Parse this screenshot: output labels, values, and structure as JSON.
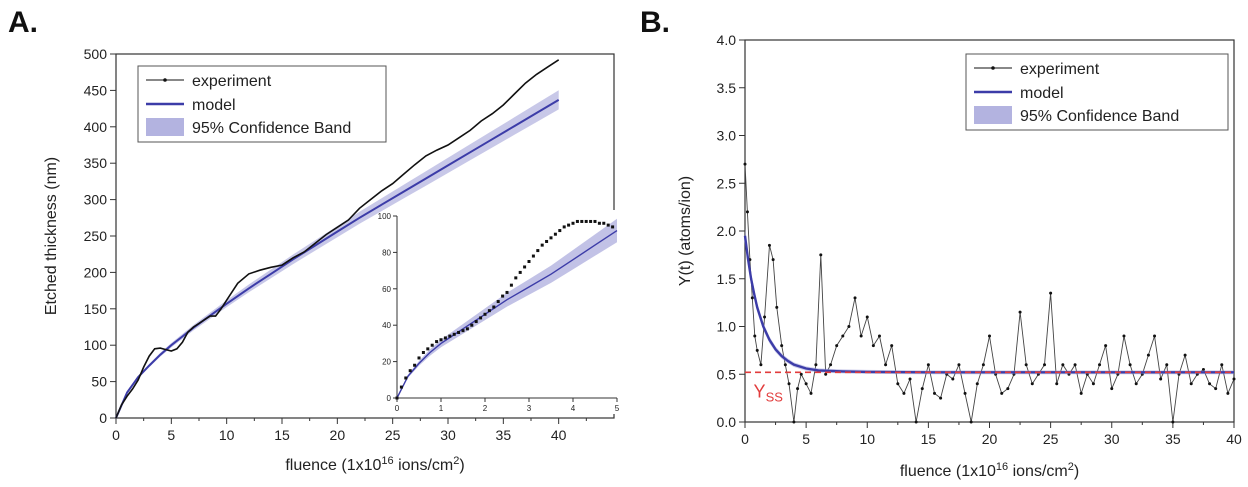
{
  "figure": {
    "panel_a_label": "A.",
    "panel_b_label": "B."
  },
  "chart_data": [
    {
      "panel": "A.",
      "type": "line",
      "xlabel": "fluence (1x10",
      "xlabel_sup": "16",
      "xlabel_mid": " ions/cm",
      "xlabel_sup2": "2",
      "xlabel_end": ")",
      "ylabel": "Etched thickness (nm)",
      "xlim": [
        0,
        45
      ],
      "ylim": [
        0,
        500
      ],
      "xticks": [
        0,
        5,
        10,
        15,
        20,
        25,
        30,
        35,
        40
      ],
      "yticks": [
        0,
        50,
        100,
        150,
        200,
        250,
        300,
        350,
        400,
        450,
        500
      ],
      "legend": {
        "position": "top-left",
        "entries": [
          "experiment",
          "model",
          "95% Confidence Band"
        ]
      },
      "colors": {
        "experiment": "#111111",
        "model": "#3c3ca8",
        "band": "#9a9ad6"
      },
      "series": [
        {
          "name": "experiment",
          "x": [
            0,
            0.5,
            1,
            1.5,
            2,
            2.5,
            3,
            3.5,
            4,
            4.5,
            5,
            5.5,
            6,
            6.5,
            7,
            7.5,
            8,
            8.5,
            9,
            9.5,
            10,
            11,
            12,
            13,
            14,
            15,
            16,
            17,
            18,
            19,
            20,
            21,
            22,
            23,
            24,
            25,
            26,
            27,
            28,
            29,
            30,
            31,
            32,
            33,
            34,
            35,
            36,
            37,
            38,
            39,
            40
          ],
          "y": [
            0,
            18,
            30,
            40,
            52,
            70,
            85,
            95,
            96,
            94,
            92,
            95,
            104,
            118,
            125,
            130,
            135,
            140,
            140,
            150,
            162,
            185,
            198,
            203,
            207,
            210,
            220,
            228,
            240,
            252,
            262,
            272,
            288,
            300,
            312,
            322,
            335,
            348,
            360,
            368,
            375,
            385,
            395,
            408,
            418,
            430,
            445,
            460,
            472,
            482,
            492
          ]
        },
        {
          "name": "model",
          "x": [
            0,
            1,
            2,
            3,
            4,
            5,
            6,
            7,
            8,
            9,
            10,
            12,
            14,
            16,
            18,
            20,
            22,
            24,
            26,
            28,
            30,
            32,
            34,
            36,
            38,
            40
          ],
          "y": [
            0,
            35,
            56,
            72,
            87,
            100,
            112,
            124,
            135,
            146,
            157,
            178,
            198,
            218,
            237,
            256,
            275,
            293,
            311,
            329,
            347,
            365,
            383,
            401,
            419,
            437
          ]
        }
      ],
      "inset": {
        "xlim": [
          0,
          5
        ],
        "ylim": [
          0,
          100
        ],
        "xticks": [
          0,
          1,
          2,
          3,
          4,
          5
        ],
        "yticks": [
          0,
          20,
          40,
          60,
          80,
          100
        ],
        "series": [
          {
            "name": "experiment",
            "x": [
              0,
              0.1,
              0.2,
              0.3,
              0.4,
              0.5,
              0.6,
              0.7,
              0.8,
              0.9,
              1.0,
              1.1,
              1.2,
              1.3,
              1.4,
              1.5,
              1.6,
              1.7,
              1.8,
              1.9,
              2.0,
              2.1,
              2.2,
              2.3,
              2.4,
              2.5,
              2.6,
              2.7,
              2.8,
              2.9,
              3.0,
              3.1,
              3.2,
              3.3,
              3.4,
              3.5,
              3.6,
              3.7,
              3.8,
              3.9,
              4.0,
              4.1,
              4.2,
              4.3,
              4.4,
              4.5,
              4.6,
              4.7,
              4.8,
              4.9
            ],
            "y": [
              0,
              6,
              11,
              15,
              18,
              22,
              25,
              27,
              29,
              31,
              32,
              33,
              34,
              35,
              36,
              37,
              38,
              40,
              42,
              44,
              46,
              48,
              50,
              53,
              56,
              58,
              62,
              66,
              69,
              72,
              75,
              78,
              81,
              84,
              86,
              88,
              90,
              92,
              94,
              95,
              96,
              97,
              97,
              97,
              97,
              97,
              96,
              96,
              95,
              94
            ]
          },
          {
            "name": "model",
            "x": [
              0,
              0.25,
              0.5,
              0.75,
              1,
              1.5,
              2,
              2.5,
              3,
              3.5,
              4,
              4.5,
              5
            ],
            "y": [
              0,
              12,
              19,
              25,
              30,
              38,
              46,
              54,
              61,
              68,
              76,
              84,
              92
            ]
          }
        ]
      }
    },
    {
      "panel": "B.",
      "type": "line",
      "xlabel": "fluence (1x10",
      "xlabel_sup": "16",
      "xlabel_mid": " ions/cm",
      "xlabel_sup2": "2",
      "xlabel_end": ")",
      "ylabel": "Y(t) (atoms/ion)",
      "xlim": [
        0,
        40
      ],
      "ylim": [
        0,
        4.0
      ],
      "xticks": [
        0,
        5,
        10,
        15,
        20,
        25,
        30,
        35,
        40
      ],
      "yticks": [
        "0.0",
        "0.5",
        "1.0",
        "1.5",
        "2.0",
        "2.5",
        "3.0",
        "3.5",
        "4.0"
      ],
      "legend": {
        "position": "top-right",
        "entries": [
          "experiment",
          "model",
          "95% Confidence Band"
        ]
      },
      "annotation": {
        "text": "Y",
        "sub": "ss",
        "color": "#e23c3c"
      },
      "steady_state": 0.52,
      "colors": {
        "experiment": "#111111",
        "model": "#3c3ca8",
        "band": "#9a9ad6",
        "ss_line": "#e23c3c"
      },
      "series": [
        {
          "name": "experiment",
          "x": [
            0,
            0.2,
            0.4,
            0.6,
            0.8,
            1,
            1.3,
            1.6,
            2,
            2.3,
            2.6,
            3,
            3.3,
            3.6,
            4,
            4.3,
            4.6,
            5,
            5.4,
            5.8,
            6.2,
            6.6,
            7,
            7.5,
            8,
            8.5,
            9,
            9.5,
            10,
            10.5,
            11,
            11.5,
            12,
            12.5,
            13,
            13.5,
            14,
            14.5,
            15,
            15.5,
            16,
            16.5,
            17,
            17.5,
            18,
            18.5,
            19,
            19.5,
            20,
            20.5,
            21,
            21.5,
            22,
            22.5,
            23,
            23.5,
            24,
            24.5,
            25,
            25.5,
            26,
            26.5,
            27,
            27.5,
            28,
            28.5,
            29,
            29.5,
            30,
            30.5,
            31,
            31.5,
            32,
            32.5,
            33,
            33.5,
            34,
            34.5,
            35,
            35.5,
            36,
            36.5,
            37,
            37.5,
            38,
            38.5,
            39,
            39.5,
            40
          ],
          "y": [
            2.7,
            2.2,
            1.7,
            1.3,
            0.9,
            0.75,
            0.6,
            1.1,
            1.85,
            1.7,
            1.2,
            0.8,
            0.6,
            0.4,
            0.0,
            0.35,
            0.5,
            0.4,
            0.3,
            0.6,
            1.75,
            0.5,
            0.6,
            0.8,
            0.9,
            1.0,
            1.3,
            0.9,
            1.1,
            0.8,
            0.9,
            0.6,
            0.8,
            0.4,
            0.3,
            0.45,
            0.0,
            0.35,
            0.6,
            0.3,
            0.25,
            0.5,
            0.45,
            0.6,
            0.3,
            0.0,
            0.4,
            0.6,
            0.9,
            0.5,
            0.3,
            0.35,
            0.5,
            1.15,
            0.6,
            0.4,
            0.5,
            0.6,
            1.35,
            0.4,
            0.6,
            0.5,
            0.6,
            0.3,
            0.5,
            0.4,
            0.6,
            0.8,
            0.35,
            0.5,
            0.9,
            0.6,
            0.4,
            0.5,
            0.7,
            0.9,
            0.45,
            0.6,
            0.0,
            0.5,
            0.7,
            0.4,
            0.5,
            0.55,
            0.4,
            0.35,
            0.6,
            0.3,
            0.45
          ]
        },
        {
          "name": "model",
          "x": [
            0,
            0.25,
            0.5,
            0.75,
            1,
            1.5,
            2,
            2.5,
            3,
            3.5,
            4,
            5,
            6,
            8,
            10,
            15,
            20,
            25,
            30,
            35,
            40
          ],
          "y": [
            1.95,
            1.7,
            1.5,
            1.34,
            1.2,
            1.0,
            0.86,
            0.76,
            0.69,
            0.64,
            0.6,
            0.56,
            0.54,
            0.53,
            0.525,
            0.52,
            0.52,
            0.52,
            0.52,
            0.52,
            0.52
          ]
        }
      ]
    }
  ]
}
